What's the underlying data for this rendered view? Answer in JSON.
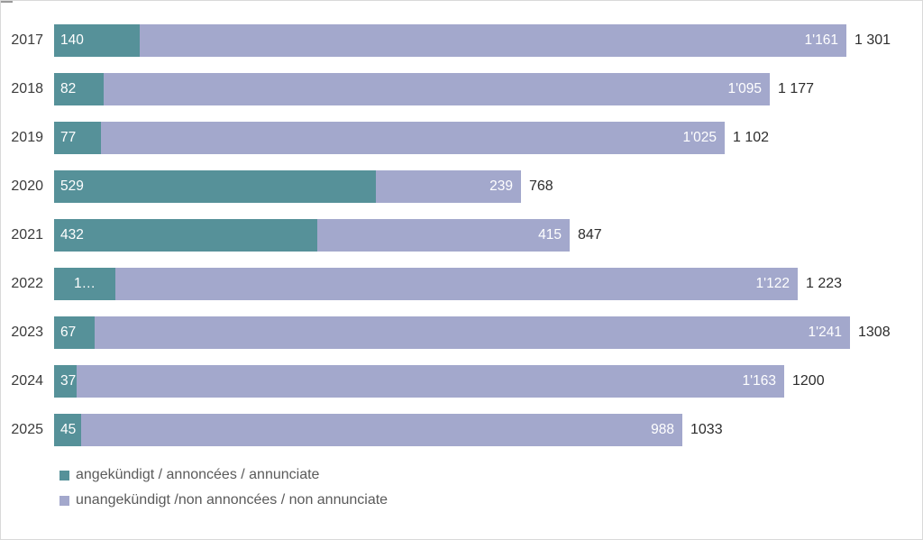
{
  "chart_data": {
    "type": "bar",
    "orientation": "horizontal",
    "stacked": true,
    "grid": false,
    "legend_position": "bottom-left",
    "categories": [
      "2017",
      "2018",
      "2019",
      "2020",
      "2021",
      "2022",
      "2023",
      "2024",
      "2025"
    ],
    "series": [
      {
        "name": "angekündigt / annoncées / annunciate",
        "color": "#569199",
        "values": [
          140,
          82,
          77,
          529,
          432,
          101,
          67,
          37,
          45
        ],
        "labels": [
          "140",
          "82",
          "77",
          "529",
          "432",
          "1…",
          "67",
          "37",
          "45"
        ]
      },
      {
        "name": "unangekündigt /non annoncées / non annunciate",
        "color": "#A3A8CC",
        "values": [
          1161,
          1095,
          1025,
          239,
          415,
          1122,
          1241,
          1163,
          988
        ],
        "labels": [
          "1'161",
          "1'095",
          "1'025",
          "239",
          "415",
          "1'122",
          "1'241",
          "1'163",
          "988"
        ]
      }
    ],
    "totals": [
      1301,
      1177,
      1102,
      768,
      847,
      1223,
      1308,
      1200,
      1033
    ],
    "total_labels": [
      "1 301",
      "1 177",
      "1 102",
      "768",
      "847",
      "1 223",
      "1308",
      "1200",
      "1033"
    ],
    "xlim": [
      0,
      1430
    ],
    "value_text_color": "#FFFFFF",
    "axis_text_color": "#3C3C3C"
  }
}
